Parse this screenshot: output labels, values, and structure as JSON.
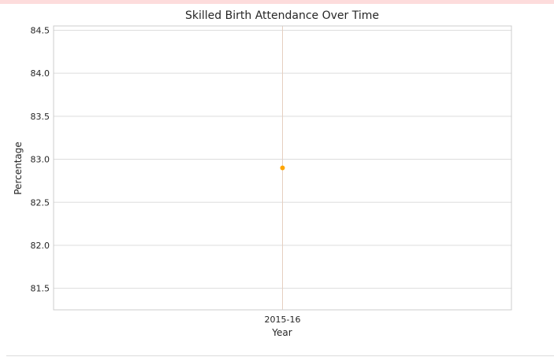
{
  "chart_data": {
    "type": "line",
    "title": "Skilled Birth Attendance Over Time",
    "xlabel": "Year",
    "ylabel": "Percentage",
    "categories": [
      "2015-16"
    ],
    "series": [
      {
        "values": [
          82.9
        ]
      }
    ],
    "ylim": [
      81.25,
      84.55
    ],
    "yticks": [
      "81.5",
      "82.0",
      "82.5",
      "83.0",
      "83.5",
      "84.0",
      "84.5"
    ],
    "grid": true,
    "colors": {
      "point": "#ffa500",
      "grid": "#dddddd",
      "axes_frame": "#cccccc",
      "xgrid": "#e6cfc0"
    }
  }
}
